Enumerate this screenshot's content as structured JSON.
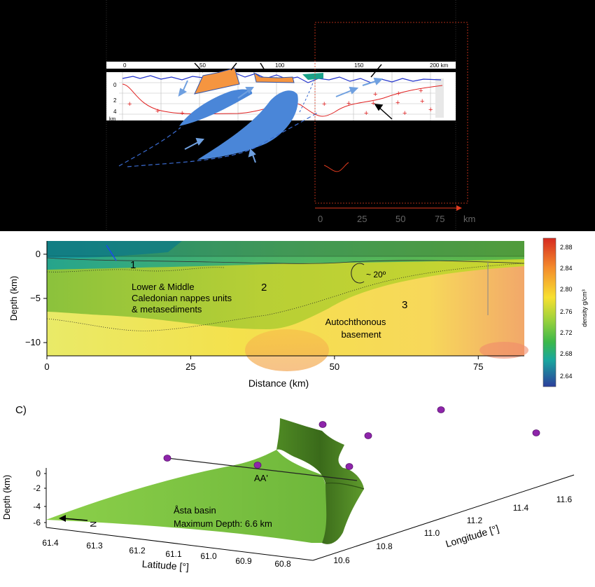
{
  "top_section": {
    "scale_ticks": [
      "0",
      "50",
      "100",
      "150",
      "200 km"
    ],
    "depth_ticks": [
      "0",
      "2",
      "4",
      "km"
    ],
    "inset_axis": {
      "ticks": [
        "0",
        "25",
        "50",
        "75"
      ],
      "unit": "km"
    }
  },
  "density_section": {
    "zone_labels": [
      "1",
      "2",
      "3"
    ],
    "unit_text_1": [
      "Lower & Middle",
      "Caledonian nappes units",
      "& metasediments"
    ],
    "unit_text_2": [
      "Autochthonous",
      "basement"
    ],
    "angle_label": "~ 20º",
    "colorbar": {
      "ticks": [
        "2.88",
        "2.84",
        "2.80",
        "2.76",
        "2.72",
        "2.68",
        "2.64"
      ],
      "label": "density g/cm³"
    }
  },
  "chart_data": {
    "type": "heatmap",
    "xlabel": "Distance (km)",
    "ylabel": "Depth (km)",
    "x_ticks": [
      0,
      25,
      50,
      75
    ],
    "y_ticks": [
      0,
      -5,
      -10
    ],
    "xlim": [
      0,
      83
    ],
    "ylim": [
      -11.5,
      1.5
    ],
    "colorbar_range": [
      2.62,
      2.9
    ],
    "density_unit": "g/cm³"
  },
  "panel_c": {
    "label": "C)",
    "z_label": "Depth (km)",
    "z_ticks": [
      "0",
      "-2",
      "-4",
      "-6"
    ],
    "lat_label": "Latitude [°]",
    "lat_ticks": [
      "61.4",
      "61.3",
      "61.2",
      "61.1",
      "61.0",
      "60.9",
      "60.8"
    ],
    "lon_label": "Longitude [°]",
    "lon_ticks": [
      "10.6",
      "10.8",
      "11.0",
      "11.2",
      "11.4",
      "11.6"
    ],
    "profile_label": "AA'",
    "north_label": "N",
    "basin_name": "Åsta basin",
    "basin_depth": "Maximum Depth: 6.6 km",
    "colors": {
      "surface": "#7dc242",
      "surface_dark": "#3f6e1e",
      "station": "#8e24aa"
    }
  }
}
